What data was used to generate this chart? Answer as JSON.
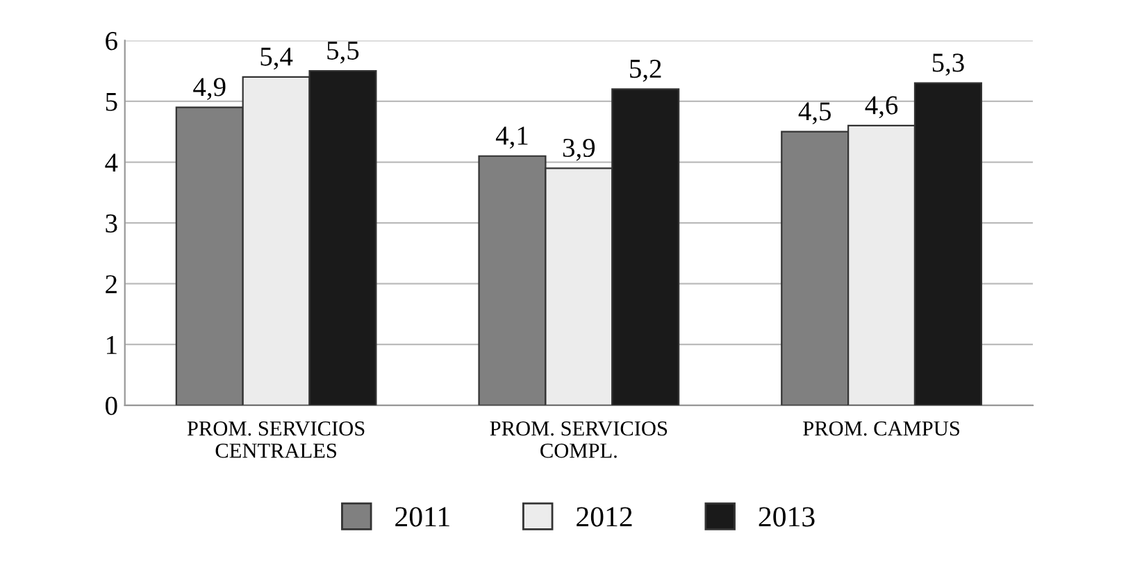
{
  "chart_data": {
    "type": "bar",
    "categories": [
      "PROM. SERVICIOS\nCENTRALES",
      "PROM. SERVICIOS\nCOMPL.",
      "PROM. CAMPUS"
    ],
    "series": [
      {
        "name": "2011",
        "color": "#808080",
        "values": [
          4.9,
          4.1,
          4.5
        ],
        "value_labels": [
          "4,9",
          "4,1",
          "4,5"
        ]
      },
      {
        "name": "2012",
        "color": "#ececec",
        "values": [
          5.4,
          3.9,
          4.6
        ],
        "value_labels": [
          "5,4",
          "3,9",
          "4,6"
        ]
      },
      {
        "name": "2013",
        "color": "#1a1a1a",
        "values": [
          5.5,
          5.2,
          5.3
        ],
        "value_labels": [
          "5,5",
          "5,2",
          "5,3"
        ]
      }
    ],
    "ylim": [
      0,
      6
    ],
    "yticks": [
      0,
      1,
      2,
      3,
      4,
      5,
      6
    ],
    "grid": "y",
    "legend": "bottom"
  }
}
